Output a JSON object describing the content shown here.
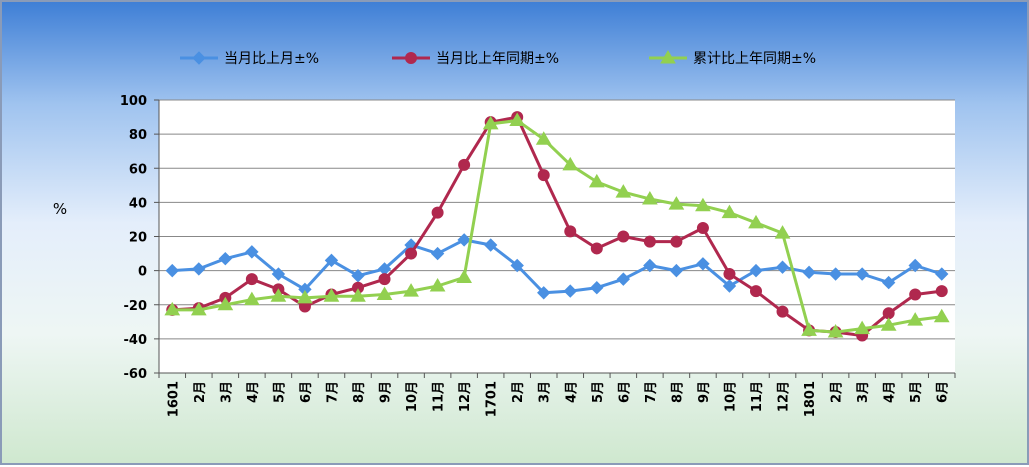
{
  "chart_data": {
    "type": "line",
    "xlabel": "",
    "ylabel": "%",
    "ylim": [
      -60,
      100
    ],
    "yticks": [
      100,
      80,
      60,
      40,
      20,
      0,
      -20,
      -40,
      -60
    ],
    "grid": true,
    "legend_position": "top",
    "categories": [
      "1601",
      "2月",
      "3月",
      "4月",
      "5月",
      "6月",
      "7月",
      "8月",
      "9月",
      "10月",
      "11月",
      "12月",
      "1701",
      "2月",
      "3月",
      "4月",
      "5月",
      "6月",
      "7月",
      "8月",
      "9月",
      "10月",
      "11月",
      "12月",
      "1801",
      "2月",
      "3月",
      "4月",
      "5月",
      "6月"
    ],
    "series": [
      {
        "name": "当月比上月±%",
        "color": "#4a90e2",
        "marker": "diamond",
        "values": [
          0,
          1,
          7,
          11,
          -2,
          -11,
          6,
          -3,
          1,
          15,
          10,
          18,
          15,
          3,
          -13,
          -12,
          -10,
          -5,
          3,
          0,
          4,
          -9,
          0,
          2,
          -1,
          -2,
          -2,
          -7,
          3,
          -2
        ]
      },
      {
        "name": "当月比上年同期±%",
        "color": "#b0284e",
        "marker": "circle",
        "values": [
          -23,
          -22,
          -16,
          -5,
          -11,
          -21,
          -14,
          -10,
          -5,
          10,
          34,
          62,
          87,
          90,
          56,
          23,
          13,
          20,
          17,
          17,
          25,
          -2,
          -12,
          -24,
          -35,
          -36,
          -38,
          -25,
          -14,
          -12
        ]
      },
      {
        "name": "累计比上年同期±%",
        "color": "#92d050",
        "marker": "triangle",
        "values": [
          -23,
          -23,
          -20,
          -17,
          -15,
          -16,
          -15,
          -15,
          -14,
          -12,
          -9,
          -4,
          86,
          88,
          77,
          62,
          52,
          46,
          42,
          39,
          38,
          34,
          28,
          22,
          -35,
          -36,
          -34,
          -32,
          -29,
          -27
        ]
      }
    ]
  }
}
